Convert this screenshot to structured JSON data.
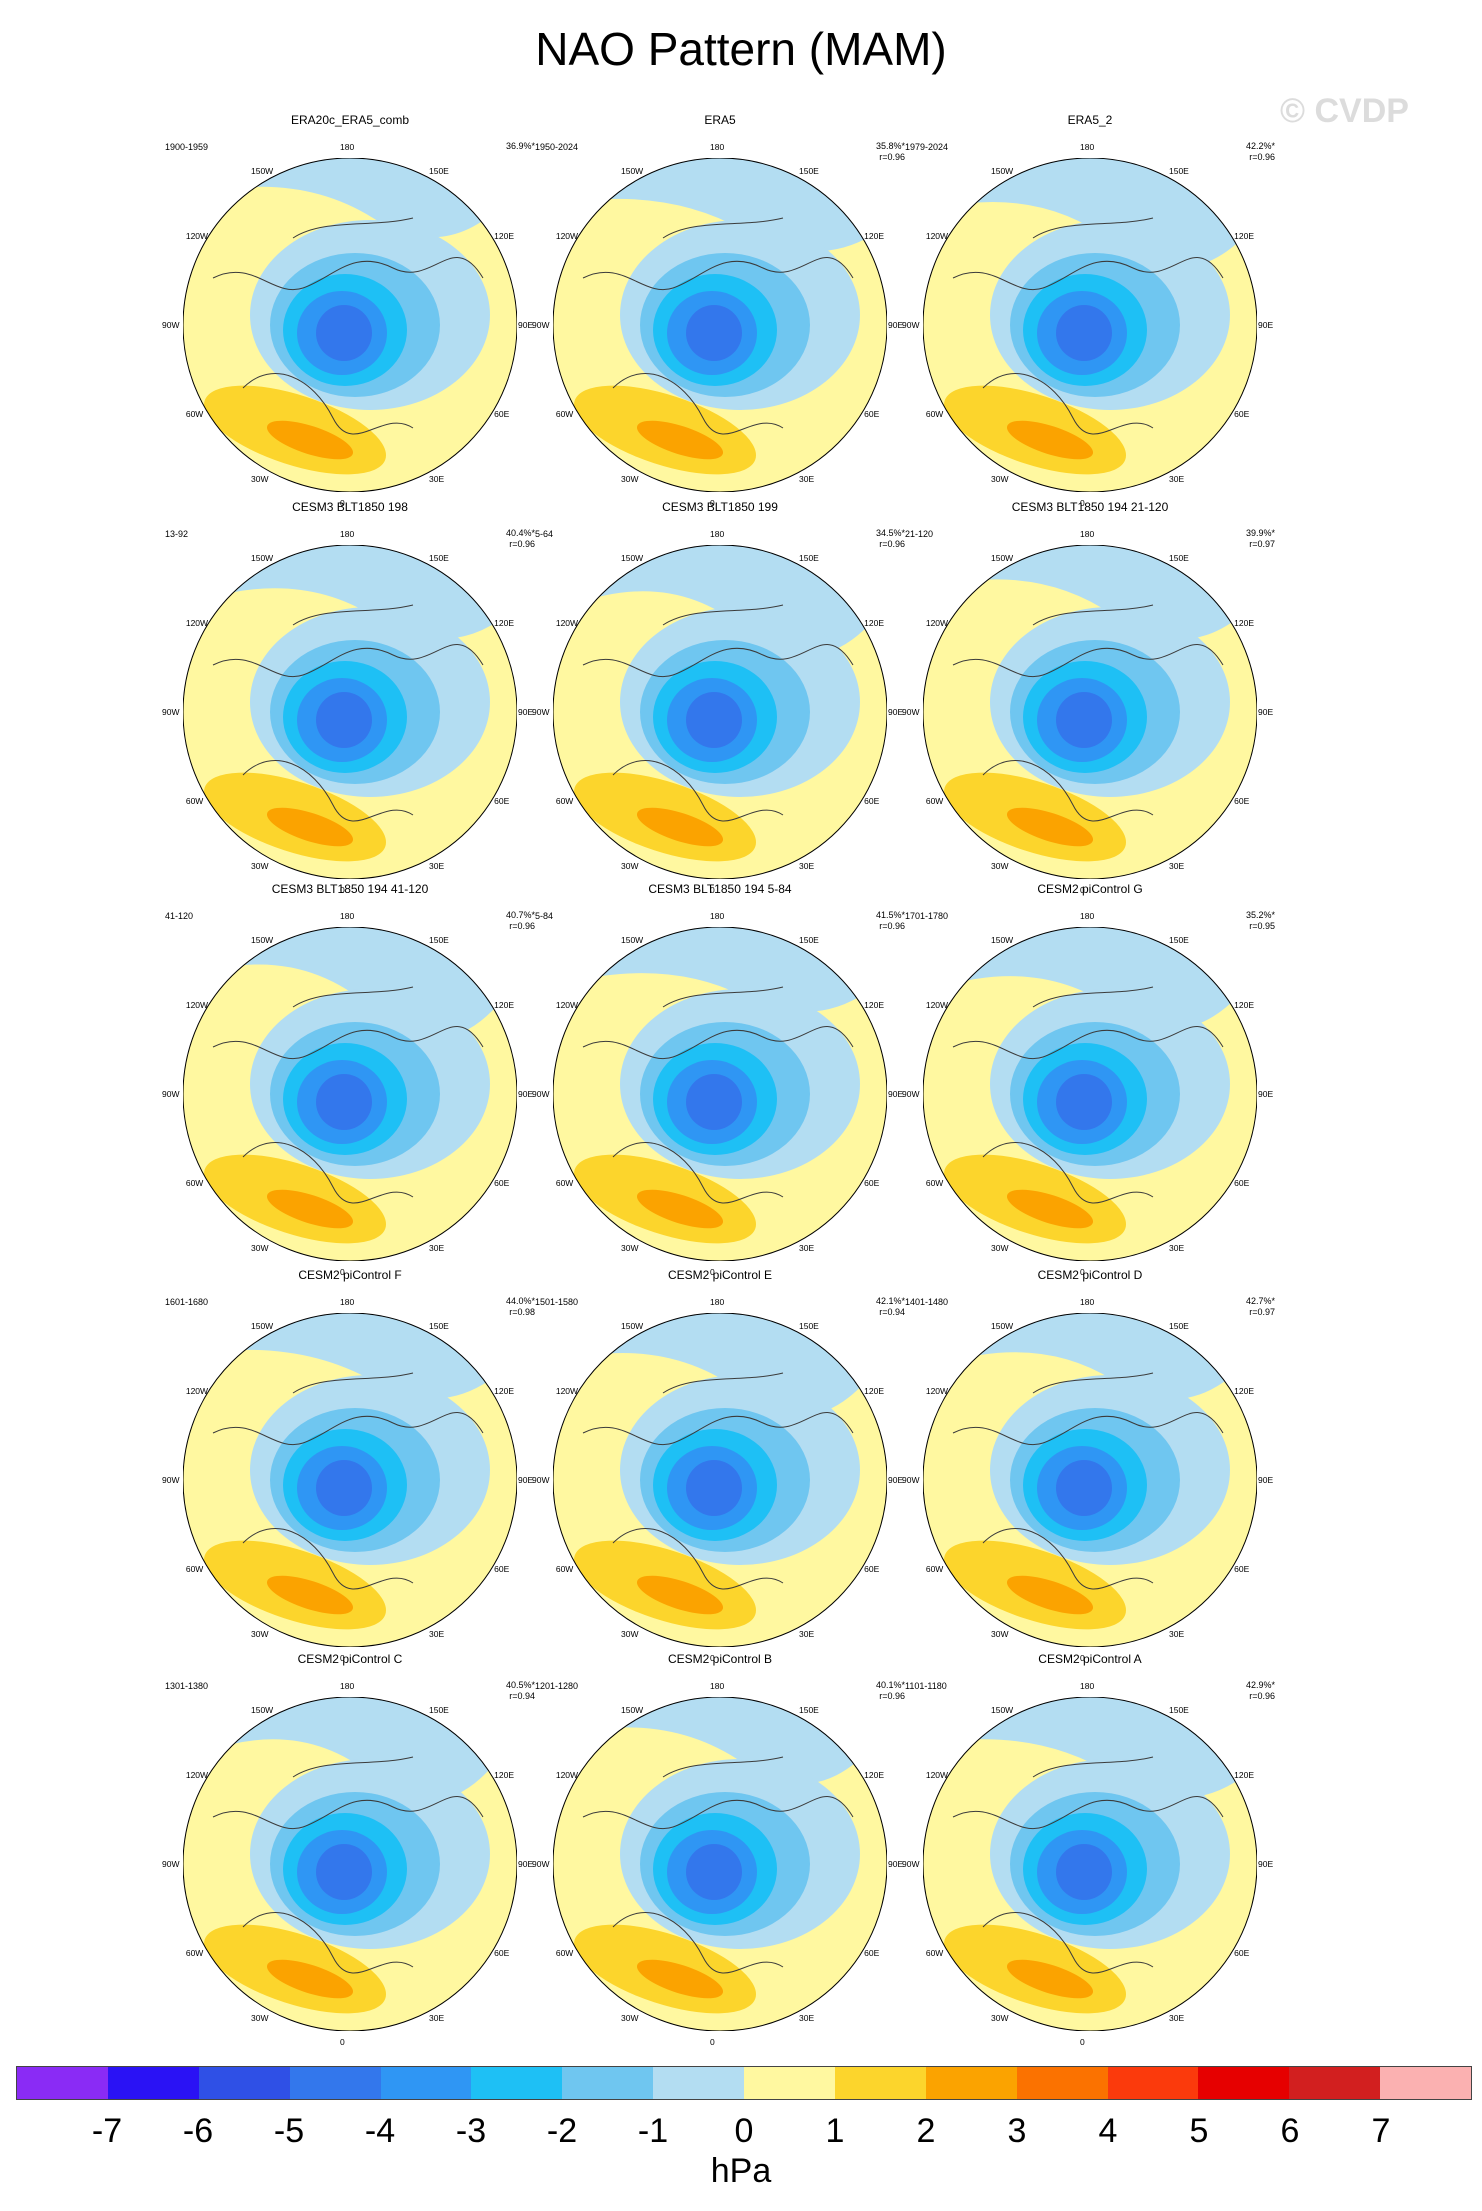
{
  "title": "NAO Pattern (MAM)",
  "watermark": "© CVDP",
  "chart_data": {
    "type": "heatmap",
    "title": "NAO Pattern (MAM)",
    "projection": "north polar stereographic",
    "variable_units": "hPa",
    "longitude_labels": [
      "180",
      "150E",
      "120E",
      "90E",
      "60E",
      "30E",
      "0",
      "30W",
      "60W",
      "90W",
      "120W",
      "150W"
    ],
    "panels": [
      {
        "name": "ERA20c_ERA5_comb",
        "years": "1900-1959",
        "pct": "36.9%*",
        "r": ""
      },
      {
        "name": "ERA5",
        "years": "1950-2024",
        "pct": "35.8%*",
        "r": "r=0.96"
      },
      {
        "name": "ERA5_2",
        "years": "1979-2024",
        "pct": "42.2%*",
        "r": "r=0.96"
      },
      {
        "name": "CESM3 BLT1850 198",
        "years": "13-92",
        "pct": "40.4%*",
        "r": "r=0.96"
      },
      {
        "name": "CESM3 BLT1850 199",
        "years": "5-64",
        "pct": "34.5%*",
        "r": "r=0.96"
      },
      {
        "name": "CESM3 BLT1850 194 21-120",
        "years": "21-120",
        "pct": "39.9%*",
        "r": "r=0.97"
      },
      {
        "name": "CESM3 BLT1850 194 41-120",
        "years": "41-120",
        "pct": "40.7%*",
        "r": "r=0.96"
      },
      {
        "name": "CESM3 BLT1850 194 5-84",
        "years": "5-84",
        "pct": "41.5%*",
        "r": "r=0.96"
      },
      {
        "name": "CESM2 piControl G",
        "years": "1701-1780",
        "pct": "35.2%*",
        "r": "r=0.95"
      },
      {
        "name": "CESM2 piControl F",
        "years": "1601-1680",
        "pct": "44.0%*",
        "r": "r=0.98"
      },
      {
        "name": "CESM2 piControl E",
        "years": "1501-1580",
        "pct": "42.1%*",
        "r": "r=0.94"
      },
      {
        "name": "CESM2 piControl D",
        "years": "1401-1480",
        "pct": "42.7%*",
        "r": "r=0.97"
      },
      {
        "name": "CESM2 piControl C",
        "years": "1301-1380",
        "pct": "40.5%*",
        "r": "r=0.94"
      },
      {
        "name": "CESM2 piControl B",
        "years": "1201-1280",
        "pct": "40.1%*",
        "r": "r=0.96"
      },
      {
        "name": "CESM2 piControl A",
        "years": "1101-1180",
        "pct": "42.9%*",
        "r": "r=0.96"
      }
    ],
    "colorbar": {
      "label": "hPa",
      "ticks": [
        "-7",
        "-6",
        "-5",
        "-4",
        "-3",
        "-2",
        "-1",
        "0",
        "1",
        "2",
        "3",
        "4",
        "5",
        "6",
        "7"
      ],
      "colors": [
        "#8a2bf5",
        "#2a12f5",
        "#2f50e6",
        "#3377ec",
        "#2f96f4",
        "#1ec0f5",
        "#6fc6f0",
        "#b3ddf2",
        "#fff8a0",
        "#fcd52c",
        "#fba300",
        "#fb7200",
        "#fb3a0c",
        "#e60000",
        "#d21f1f",
        "#fbb1b1"
      ]
    }
  }
}
